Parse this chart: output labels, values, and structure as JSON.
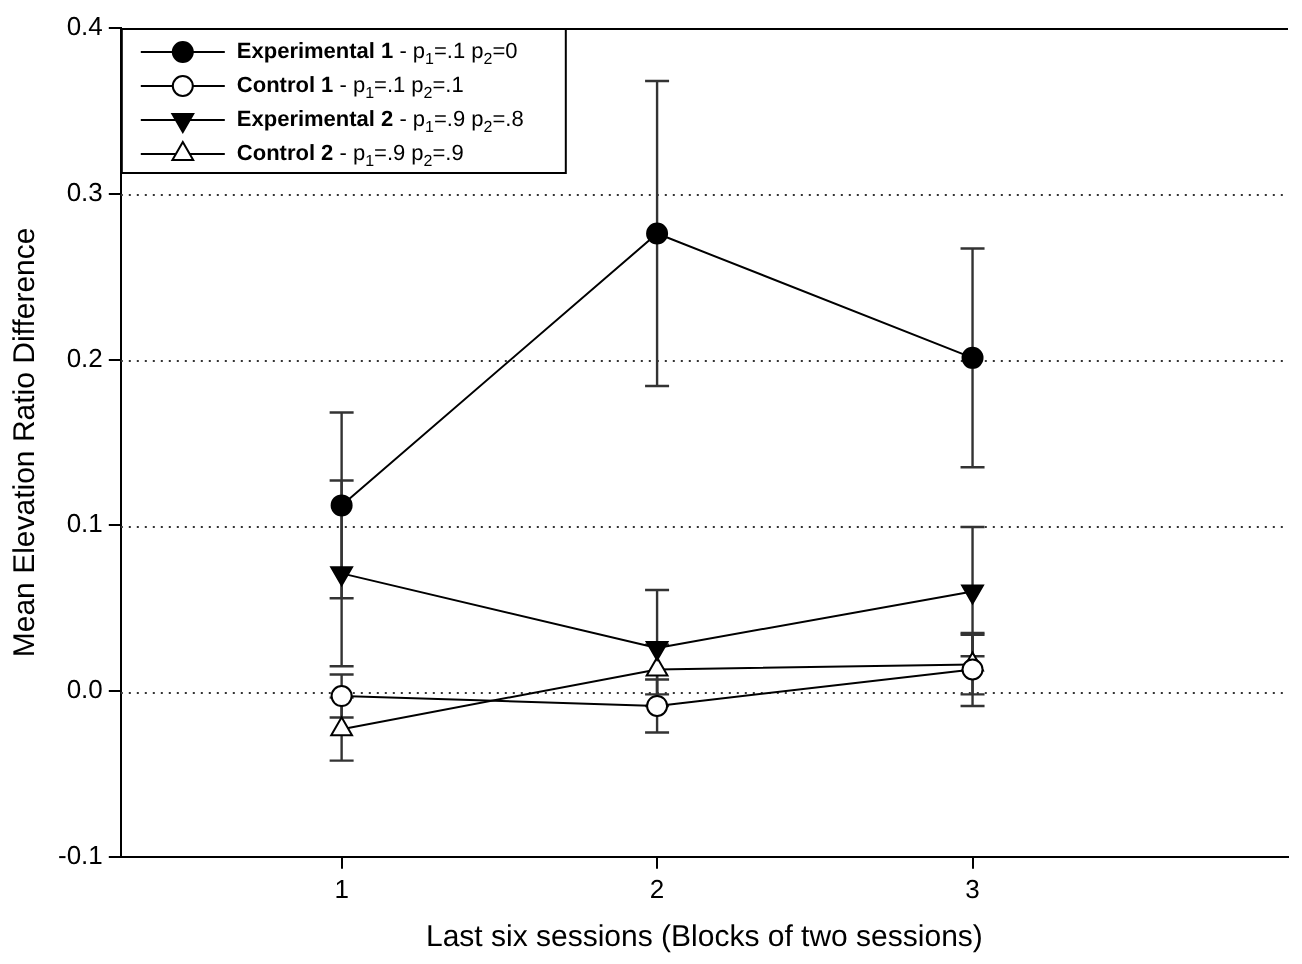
{
  "chart_data": {
    "type": "line",
    "xlabel": "Last six sessions (Blocks of two sessions)",
    "ylabel": "Mean Elevation Ratio Difference",
    "x": [
      1,
      2,
      3
    ],
    "xlim": [
      0.3,
      4
    ],
    "xticks": [
      1,
      2,
      3
    ],
    "ylim": [
      -0.1,
      0.4
    ],
    "yticks": [
      -0.1,
      {
        "value": 0,
        "label": "0.0"
      },
      0.1,
      0.2,
      0.3,
      0.4
    ],
    "grid": "y",
    "legend": "top left",
    "line_style": "solid",
    "series": [
      {
        "name": "Experimental 1 - p$_{1}$=.1 p$_{2}$=0",
        "color": "#000000",
        "marker": "circle",
        "values": [
          0.112,
          0.276,
          0.201
        ],
        "errors": [
          0.056,
          0.092,
          0.066
        ]
      },
      {
        "name": "Control 1 - p$_{1}$=.1 p$_{2}$=.1",
        "color": "#000000",
        "marker": "circle-open",
        "values": [
          -0.003,
          -0.009,
          0.013
        ],
        "errors": [
          0.013,
          0.016,
          0.022
        ]
      },
      {
        "name": "Experimental 2 - p$_{1}$=.9 p$_{2}$=.8",
        "color": "#000000",
        "marker": "triangle-down",
        "values": [
          0.071,
          0.026,
          0.06
        ],
        "errors": [
          0.056,
          0.035,
          0.039
        ]
      },
      {
        "name": "Control 2 - p$_{1}$=.9 p$_{2}$=.9",
        "color": "#000000",
        "marker": "triangle-open",
        "values": [
          -0.023,
          0.013,
          0.016
        ],
        "errors": [
          0.019,
          0.015,
          0.018
        ]
      }
    ]
  }
}
